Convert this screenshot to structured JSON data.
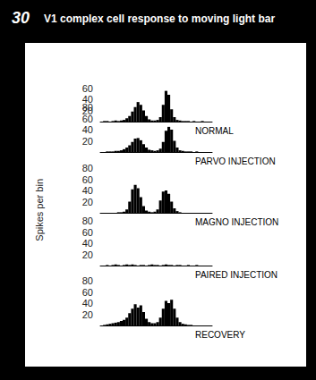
{
  "figure": {
    "label": "30",
    "title": "V1 complex cell response to moving light bar",
    "ylabel": "Spikes per bin"
  },
  "chart_data": [
    {
      "type": "histogram",
      "title": "NORMAL",
      "color": "#000000",
      "tick_labels": "y",
      "bins": [
        0,
        1,
        2,
        3,
        4,
        5,
        6,
        7,
        8,
        9,
        10,
        11,
        12,
        13,
        14,
        15,
        16,
        17,
        18,
        19,
        20,
        21,
        22,
        23,
        24,
        25,
        26,
        27,
        28,
        29,
        30,
        31,
        32,
        33,
        34,
        35,
        36,
        37,
        38,
        39,
        40
      ],
      "counts": [
        0,
        1,
        1,
        0,
        1,
        2,
        1,
        2,
        3,
        6,
        10,
        18,
        26,
        35,
        30,
        20,
        10,
        4,
        2,
        2,
        3,
        8,
        30,
        55,
        48,
        22,
        8,
        3,
        2,
        1,
        1,
        1,
        0,
        1,
        0,
        0,
        1,
        0,
        0,
        0
      ],
      "ylim": [
        0,
        60
      ],
      "yticks": [
        20,
        40,
        60
      ]
    },
    {
      "type": "histogram",
      "title": "PARVO INJECTION",
      "color": "#000000",
      "tick_labels": "y",
      "bins": [
        0,
        1,
        2,
        3,
        4,
        5,
        6,
        7,
        8,
        9,
        10,
        11,
        12,
        13,
        14,
        15,
        16,
        17,
        18,
        19,
        20,
        21,
        22,
        23,
        24,
        25,
        26,
        27,
        28,
        29,
        30,
        31,
        32,
        33,
        34,
        35,
        36,
        37,
        38,
        39,
        40
      ],
      "counts": [
        0,
        0,
        1,
        1,
        1,
        2,
        2,
        3,
        5,
        8,
        12,
        18,
        24,
        25,
        21,
        14,
        8,
        4,
        3,
        2,
        3,
        6,
        18,
        38,
        45,
        40,
        20,
        8,
        3,
        2,
        1,
        1,
        1,
        0,
        1,
        0,
        0,
        0,
        0,
        0
      ],
      "ylim": [
        0,
        80
      ],
      "yticks": [
        20,
        40,
        60,
        80
      ]
    },
    {
      "type": "histogram",
      "title": "MAGNO INJECTION",
      "color": "#000000",
      "tick_labels": "y",
      "bins": [
        0,
        1,
        2,
        3,
        4,
        5,
        6,
        7,
        8,
        9,
        10,
        11,
        12,
        13,
        14,
        15,
        16,
        17,
        18,
        19,
        20,
        21,
        22,
        23,
        24,
        25,
        26,
        27,
        28,
        29,
        30,
        31,
        32,
        33,
        34,
        35,
        36,
        37,
        38,
        39,
        40
      ],
      "counts": [
        0,
        0,
        0,
        0,
        0,
        0,
        1,
        1,
        2,
        6,
        20,
        42,
        50,
        44,
        28,
        12,
        4,
        2,
        1,
        2,
        6,
        22,
        38,
        40,
        34,
        20,
        8,
        3,
        1,
        0,
        0,
        0,
        0,
        0,
        0,
        0,
        0,
        0,
        0,
        0
      ],
      "ylim": [
        0,
        80
      ],
      "yticks": [
        20,
        40,
        60,
        80
      ]
    },
    {
      "type": "histogram",
      "title": "PAIRED INJECTION",
      "color": "#000000",
      "tick_labels": "y",
      "bins": [
        0,
        1,
        2,
        3,
        4,
        5,
        6,
        7,
        8,
        9,
        10,
        11,
        12,
        13,
        14,
        15,
        16,
        17,
        18,
        19,
        20,
        21,
        22,
        23,
        24,
        25,
        26,
        27,
        28,
        29,
        30,
        31,
        32,
        33,
        34,
        35,
        36,
        37,
        38,
        39,
        40
      ],
      "counts": [
        0,
        0,
        1,
        0,
        1,
        2,
        1,
        0,
        1,
        2,
        1,
        2,
        1,
        0,
        1,
        1,
        0,
        1,
        2,
        1,
        1,
        0,
        1,
        2,
        1,
        1,
        0,
        1,
        1,
        0,
        0,
        1,
        0,
        0,
        1,
        0,
        0,
        0,
        0,
        0
      ],
      "ylim": [
        0,
        80
      ],
      "yticks": [
        20,
        40,
        60,
        80
      ]
    },
    {
      "type": "histogram",
      "title": "RECOVERY",
      "color": "#000000",
      "tick_labels": "y",
      "bins": [
        0,
        1,
        2,
        3,
        4,
        5,
        6,
        7,
        8,
        9,
        10,
        11,
        12,
        13,
        14,
        15,
        16,
        17,
        18,
        19,
        20,
        21,
        22,
        23,
        24,
        25,
        26,
        27,
        28,
        29,
        30,
        31,
        32,
        33,
        34,
        35,
        36,
        37,
        38,
        39,
        40
      ],
      "counts": [
        0,
        1,
        2,
        3,
        4,
        5,
        6,
        8,
        10,
        14,
        22,
        30,
        38,
        32,
        36,
        24,
        12,
        6,
        4,
        4,
        6,
        14,
        30,
        44,
        40,
        46,
        30,
        14,
        6,
        3,
        2,
        1,
        1,
        0,
        0,
        0,
        0,
        0,
        0,
        0
      ],
      "ylim": [
        0,
        80
      ],
      "yticks": [
        20,
        40,
        60,
        80
      ]
    }
  ]
}
